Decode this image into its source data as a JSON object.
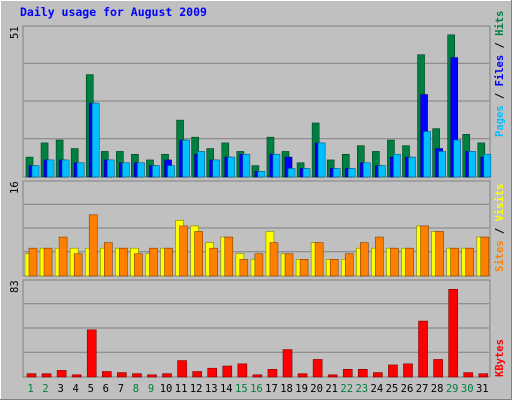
{
  "title": "Daily usage for August 2009",
  "colors": {
    "background": "#c0c0c0",
    "plot": "#c0c0c0",
    "title": "#0000ff",
    "hits": "#008040",
    "files": "#0000ff",
    "pages": "#00c0ff",
    "visits": "#ffff00",
    "sites": "#ff8000",
    "kbytes": "#ff0000",
    "weekend_day": "#008040",
    "weekday": "#000000"
  },
  "panels": {
    "hits": {
      "max_label": "51",
      "legend": [
        "Pages",
        "Files",
        "Hits"
      ]
    },
    "visits": {
      "max_label": "16",
      "legend": [
        "Sites",
        "Visits"
      ]
    },
    "kbytes": {
      "max_label": "83",
      "legend": [
        "KBytes"
      ]
    }
  },
  "chart_data": {
    "type": "bar",
    "title": "Daily usage for August 2009",
    "categories": [
      "1",
      "2",
      "3",
      "4",
      "5",
      "6",
      "7",
      "8",
      "9",
      "10",
      "11",
      "12",
      "13",
      "14",
      "15",
      "16",
      "17",
      "18",
      "19",
      "20",
      "21",
      "22",
      "23",
      "24",
      "25",
      "26",
      "27",
      "28",
      "29",
      "30",
      "31"
    ],
    "weekend_days": [
      "1",
      "2",
      "8",
      "9",
      "15",
      "16",
      "22",
      "23",
      "29",
      "30"
    ],
    "panels": [
      {
        "name": "hits-panel",
        "ymax": 51,
        "series": [
          {
            "name": "Hits",
            "values": [
              7,
              12,
              13,
              10,
              36,
              9,
              9,
              8,
              6,
              8,
              20,
              14,
              10,
              12,
              9,
              4,
              14,
              9,
              5,
              19,
              6,
              8,
              11,
              9,
              13,
              11,
              43,
              17,
              50,
              15,
              12
            ]
          },
          {
            "name": "Files",
            "values": [
              4,
              6,
              6,
              5,
              26,
              6,
              5,
              5,
              4,
              6,
              13,
              8,
              6,
              7,
              8,
              2,
              8,
              7,
              3,
              12,
              3,
              3,
              5,
              4,
              7,
              7,
              29,
              10,
              42,
              9,
              7
            ]
          },
          {
            "name": "Pages",
            "values": [
              4,
              6,
              6,
              5,
              26,
              6,
              5,
              5,
              4,
              4,
              13,
              9,
              6,
              7,
              8,
              2,
              8,
              3,
              3,
              12,
              3,
              3,
              5,
              4,
              8,
              7,
              16,
              9,
              13,
              9,
              8
            ]
          }
        ]
      },
      {
        "name": "visits-panel",
        "ymax": 16,
        "series": [
          {
            "name": "Visits",
            "values": [
              4,
              5,
              5,
              5,
              5,
              5,
              5,
              5,
              4,
              5,
              10,
              9,
              6,
              7,
              4,
              3,
              8,
              4,
              3,
              6,
              3,
              3,
              5,
              5,
              5,
              5,
              9,
              8,
              5,
              5,
              7
            ]
          },
          {
            "name": "Sites",
            "values": [
              5,
              5,
              7,
              4,
              11,
              6,
              5,
              4,
              5,
              5,
              9,
              8,
              5,
              7,
              3,
              4,
              6,
              4,
              3,
              6,
              3,
              4,
              6,
              7,
              5,
              5,
              9,
              8,
              5,
              5,
              7
            ]
          }
        ]
      },
      {
        "name": "kbytes-panel",
        "ymax": 83,
        "series": [
          {
            "name": "KBytes",
            "values": [
              3,
              3,
              6,
              2,
              43,
              5,
              4,
              3,
              2,
              3,
              15,
              5,
              8,
              10,
              12,
              2,
              7,
              25,
              3,
              16,
              2,
              7,
              7,
              4,
              11,
              12,
              51,
              16,
              80,
              4,
              3
            ]
          }
        ]
      }
    ]
  }
}
